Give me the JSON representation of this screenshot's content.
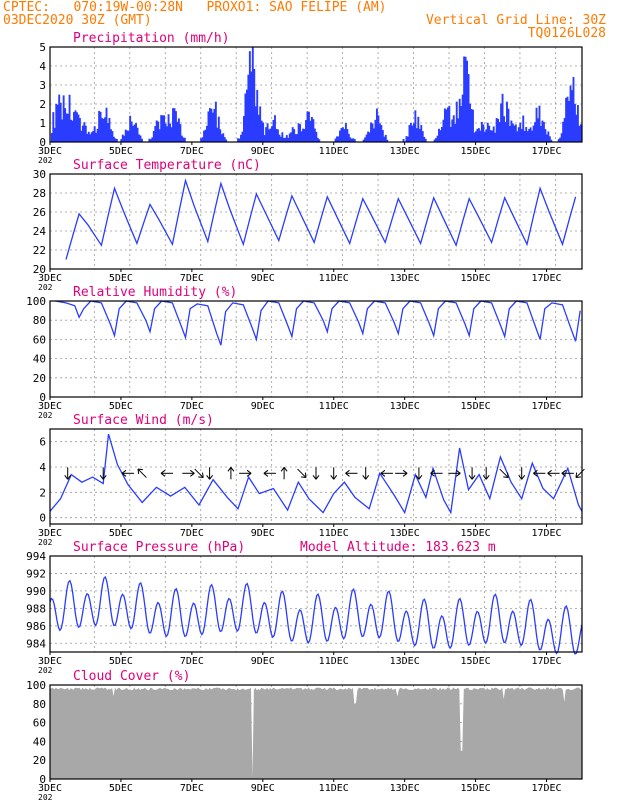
{
  "header": {
    "line1": "CPTEC:   070:19W-00:28N   PROXO1: SAO FELIPE (AM)",
    "line2_left": "03DEC2020 30Z (GMT)",
    "line2_right": "Vertical Grid Line: 30Z",
    "line3_right": "TQ0126L028"
  },
  "colors": {
    "header": "#ff7a00",
    "panel_title": "#e0007a",
    "series": "#2a3cff",
    "cloud": "#a8a8a8",
    "grid": "#9a9a9a"
  },
  "x_axis": {
    "start": "3DEC",
    "end": "18DEC",
    "tick_labels": [
      "3DEC",
      "5DEC",
      "7DEC",
      "9DEC",
      "11DEC",
      "13DEC",
      "15DEC",
      "17DEC"
    ],
    "tick_days": [
      3,
      5,
      7,
      9,
      11,
      13,
      15,
      17
    ],
    "year_fragment": "202"
  },
  "chart_data": [
    {
      "type": "bar",
      "title": "Precipitation (mm/h)",
      "ylim": [
        0,
        5
      ],
      "yticks": [
        "0",
        "1",
        "2",
        "3",
        "4",
        "5"
      ],
      "x_unit": "day of December 2020",
      "events": [
        {
          "day": 3.2,
          "amp": 1.6
        },
        {
          "day": 3.5,
          "amp": 2.1
        },
        {
          "day": 3.9,
          "amp": 1.2
        },
        {
          "day": 4.5,
          "amp": 2.1
        },
        {
          "day": 5.3,
          "amp": 1.3
        },
        {
          "day": 6.1,
          "amp": 1.2
        },
        {
          "day": 6.5,
          "amp": 1.6
        },
        {
          "day": 7.6,
          "amp": 2.2
        },
        {
          "day": 8.7,
          "amp": 4.6
        },
        {
          "day": 9.3,
          "amp": 1.4
        },
        {
          "day": 9.9,
          "amp": 0.8
        },
        {
          "day": 10.3,
          "amp": 1.6
        },
        {
          "day": 11.3,
          "amp": 0.9
        },
        {
          "day": 12.2,
          "amp": 1.7
        },
        {
          "day": 13.3,
          "amp": 1.5
        },
        {
          "day": 14.2,
          "amp": 1.8
        },
        {
          "day": 14.7,
          "amp": 4.2
        },
        {
          "day": 15.3,
          "amp": 1.2
        },
        {
          "day": 15.8,
          "amp": 2.2
        },
        {
          "day": 16.3,
          "amp": 1.2
        },
        {
          "day": 16.8,
          "amp": 1.8
        },
        {
          "day": 17.7,
          "amp": 3.7
        }
      ]
    },
    {
      "type": "line",
      "title": "Surface Temperature (nC)",
      "ylim": [
        20,
        30
      ],
      "yticks": [
        "20",
        "22",
        "24",
        "26",
        "28",
        "30"
      ],
      "diurnal_min": [
        21.0,
        22.5,
        22.7,
        22.6,
        22.9,
        22.6,
        23.0,
        22.8,
        22.7,
        22.8,
        22.7,
        22.5,
        22.8,
        22.6,
        22.6
      ],
      "diurnal_max": [
        25.8,
        28.5,
        26.8,
        29.3,
        29.0,
        27.9,
        27.7,
        27.6,
        27.4,
        27.4,
        27.5,
        27.4,
        27.5,
        28.5,
        27.6
      ]
    },
    {
      "type": "line",
      "title": "Relative Humidity (%)",
      "ylim": [
        0,
        100
      ],
      "yticks": [
        "0",
        "20",
        "40",
        "60",
        "80",
        "100"
      ],
      "diurnal_min": [
        83,
        64,
        68,
        62,
        54,
        60,
        63,
        68,
        66,
        66,
        64,
        64,
        63,
        60,
        58
      ],
      "diurnal_max": [
        100,
        100,
        100,
        100,
        97,
        98,
        100,
        100,
        100,
        100,
        100,
        100,
        100,
        100,
        98
      ]
    },
    {
      "type": "line",
      "title": "Surface Wind (m/s)",
      "ylim": [
        -0.5,
        7
      ],
      "yticks": [
        "0",
        "2",
        "4",
        "6"
      ],
      "anchors": [
        [
          3.0,
          0.5
        ],
        [
          3.3,
          1.5
        ],
        [
          3.6,
          3.4
        ],
        [
          3.9,
          2.8
        ],
        [
          4.2,
          3.2
        ],
        [
          4.5,
          2.7
        ],
        [
          4.65,
          6.6
        ],
        [
          4.9,
          4.2
        ],
        [
          5.2,
          2.6
        ],
        [
          5.6,
          1.2
        ],
        [
          6.0,
          2.4
        ],
        [
          6.4,
          1.7
        ],
        [
          6.8,
          2.4
        ],
        [
          7.2,
          1.0
        ],
        [
          7.6,
          3.0
        ],
        [
          8.0,
          1.6
        ],
        [
          8.3,
          0.7
        ],
        [
          8.6,
          3.2
        ],
        [
          8.9,
          1.9
        ],
        [
          9.3,
          2.3
        ],
        [
          9.7,
          0.6
        ],
        [
          10.0,
          2.8
        ],
        [
          10.3,
          1.5
        ],
        [
          10.7,
          0.4
        ],
        [
          11.0,
          1.9
        ],
        [
          11.3,
          2.8
        ],
        [
          11.6,
          1.6
        ],
        [
          12.0,
          0.7
        ],
        [
          12.3,
          3.5
        ],
        [
          12.7,
          1.8
        ],
        [
          13.0,
          0.4
        ],
        [
          13.3,
          3.4
        ],
        [
          13.6,
          1.6
        ],
        [
          13.8,
          3.9
        ],
        [
          14.1,
          1.4
        ],
        [
          14.3,
          0.4
        ],
        [
          14.55,
          5.5
        ],
        [
          14.8,
          2.2
        ],
        [
          15.1,
          3.4
        ],
        [
          15.4,
          1.5
        ],
        [
          15.7,
          4.8
        ],
        [
          16.0,
          2.8
        ],
        [
          16.3,
          1.5
        ],
        [
          16.6,
          4.3
        ],
        [
          16.9,
          2.3
        ],
        [
          17.2,
          1.5
        ],
        [
          17.6,
          3.9
        ],
        [
          17.9,
          1.0
        ],
        [
          18.0,
          0.5
        ]
      ],
      "arrows": [
        {
          "day": 3.5,
          "dir": "down"
        },
        {
          "day": 4.5,
          "dir": "down"
        },
        {
          "day": 5.2,
          "dir": "left"
        },
        {
          "day": 5.6,
          "dir": "up-left"
        },
        {
          "day": 6.3,
          "dir": "left"
        },
        {
          "day": 6.9,
          "dir": "right"
        },
        {
          "day": 7.2,
          "dir": "down-right"
        },
        {
          "day": 7.5,
          "dir": "down"
        },
        {
          "day": 8.1,
          "dir": "up"
        },
        {
          "day": 8.5,
          "dir": "right"
        },
        {
          "day": 9.2,
          "dir": "left"
        },
        {
          "day": 9.6,
          "dir": "up"
        },
        {
          "day": 10.1,
          "dir": "down-right"
        },
        {
          "day": 10.5,
          "dir": "down"
        },
        {
          "day": 11.0,
          "dir": "down"
        },
        {
          "day": 11.5,
          "dir": "left"
        },
        {
          "day": 11.9,
          "dir": "down"
        },
        {
          "day": 12.5,
          "dir": "left"
        },
        {
          "day": 12.9,
          "dir": "right"
        },
        {
          "day": 13.4,
          "dir": "down"
        },
        {
          "day": 13.9,
          "dir": "left"
        },
        {
          "day": 14.4,
          "dir": "right"
        },
        {
          "day": 14.9,
          "dir": "down"
        },
        {
          "day": 15.3,
          "dir": "down"
        },
        {
          "day": 15.8,
          "dir": "down-right"
        },
        {
          "day": 16.3,
          "dir": "down"
        },
        {
          "day": 16.8,
          "dir": "left"
        },
        {
          "day": 17.2,
          "dir": "left"
        },
        {
          "day": 17.6,
          "dir": "left"
        },
        {
          "day": 17.95,
          "dir": "down-left"
        }
      ]
    },
    {
      "type": "line",
      "title": "Surface Pressure (hPa)",
      "subtitle": "Model Altitude: 183.623 m",
      "ylim": [
        983,
        994
      ],
      "yticks": [
        "984",
        "986",
        "988",
        "990",
        "992",
        "994"
      ],
      "harmonic": {
        "mean": 988.2,
        "trend_per_day": -0.18,
        "semi_diurnal_amp": 2.3,
        "diurnal_amp": 0.9
      }
    },
    {
      "type": "area",
      "title": "Cloud Cover (%)",
      "ylim": [
        0,
        100
      ],
      "yticks": [
        "0",
        "20",
        "40",
        "60",
        "80",
        "100"
      ],
      "typical_value": 96,
      "dips": [
        {
          "day": 4.8,
          "value": 88
        },
        {
          "day": 8.7,
          "value": 2
        },
        {
          "day": 11.6,
          "value": 80
        },
        {
          "day": 12.8,
          "value": 88
        },
        {
          "day": 14.6,
          "value": 30
        },
        {
          "day": 15.8,
          "value": 85
        },
        {
          "day": 17.5,
          "value": 82
        }
      ]
    }
  ]
}
